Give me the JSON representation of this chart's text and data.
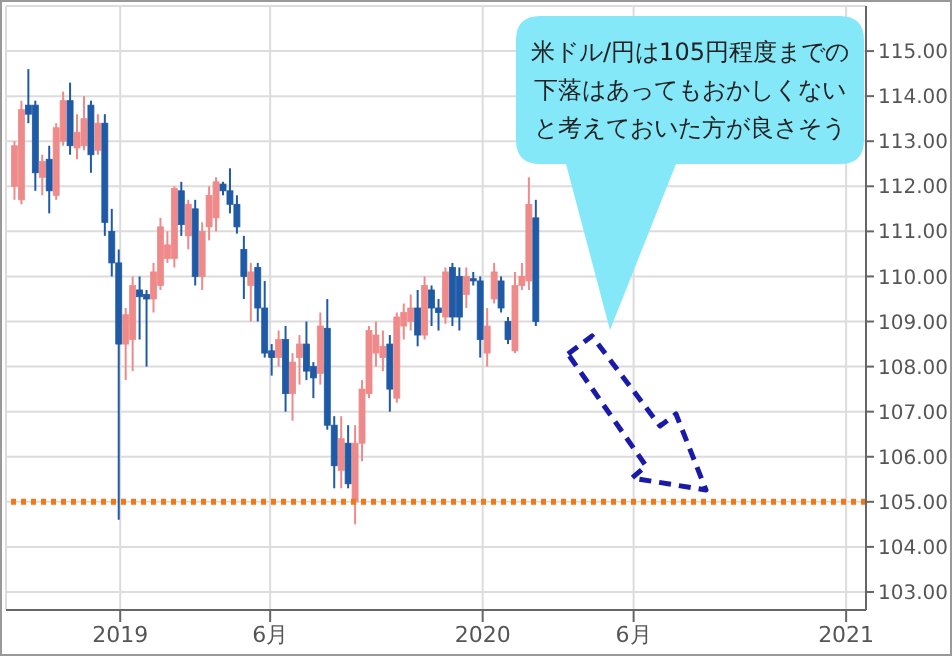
{
  "chart_data": {
    "type": "candlestick",
    "x": [
      "2018-09-17",
      "2018-09-24",
      "2018-10-01",
      "2018-10-08",
      "2018-10-15",
      "2018-10-22",
      "2018-10-29",
      "2018-11-05",
      "2018-11-12",
      "2018-11-19",
      "2018-11-26",
      "2018-12-03",
      "2018-12-10",
      "2018-12-17",
      "2018-12-24",
      "2018-12-31",
      "2019-01-07",
      "2019-01-14",
      "2019-01-21",
      "2019-01-28",
      "2019-02-04",
      "2019-02-11",
      "2019-02-18",
      "2019-02-25",
      "2019-03-04",
      "2019-03-11",
      "2019-03-18",
      "2019-03-25",
      "2019-04-01",
      "2019-04-08",
      "2019-04-15",
      "2019-04-22",
      "2019-04-29",
      "2019-05-06",
      "2019-05-13",
      "2019-05-20",
      "2019-05-27",
      "2019-06-03",
      "2019-06-10",
      "2019-06-17",
      "2019-06-24",
      "2019-07-01",
      "2019-07-08",
      "2019-07-15",
      "2019-07-22",
      "2019-07-29",
      "2019-08-05",
      "2019-08-12",
      "2019-08-19",
      "2019-08-26",
      "2019-09-02",
      "2019-09-09",
      "2019-09-16",
      "2019-09-23",
      "2019-09-30",
      "2019-10-07",
      "2019-10-14",
      "2019-10-21",
      "2019-10-28",
      "2019-11-04",
      "2019-11-11",
      "2019-11-18",
      "2019-11-25",
      "2019-12-02",
      "2019-12-09",
      "2019-12-16",
      "2019-12-23",
      "2019-12-30",
      "2020-01-06",
      "2020-01-13",
      "2020-01-20",
      "2020-01-27",
      "2020-02-03",
      "2020-02-10",
      "2020-02-17",
      "2020-02-24"
    ],
    "ohlc": [
      [
        112.0,
        113.0,
        111.7,
        112.9
      ],
      [
        111.7,
        113.9,
        111.6,
        113.7
      ],
      [
        113.8,
        114.6,
        113.4,
        113.6
      ],
      [
        113.8,
        113.9,
        111.9,
        112.3
      ],
      [
        112.2,
        112.7,
        111.8,
        112.55
      ],
      [
        112.6,
        112.9,
        111.4,
        111.9
      ],
      [
        111.8,
        113.4,
        111.7,
        113.3
      ],
      [
        113.0,
        114.1,
        112.9,
        113.9
      ],
      [
        113.9,
        114.3,
        112.7,
        112.9
      ],
      [
        112.85,
        113.6,
        112.6,
        113.2
      ],
      [
        112.9,
        114.0,
        112.8,
        113.5
      ],
      [
        113.8,
        113.9,
        112.3,
        112.7
      ],
      [
        112.8,
        113.6,
        112.7,
        113.4
      ],
      [
        113.4,
        113.6,
        110.9,
        111.2
      ],
      [
        111.0,
        111.5,
        110.0,
        110.3
      ],
      [
        110.3,
        110.6,
        104.6,
        108.5
      ],
      [
        108.5,
        109.3,
        107.7,
        109.15
      ],
      [
        108.6,
        110.0,
        107.9,
        109.8
      ],
      [
        109.7,
        110.0,
        108.6,
        109.55
      ],
      [
        109.6,
        109.7,
        108.0,
        109.5
      ],
      [
        109.5,
        110.3,
        109.2,
        110.1
      ],
      [
        109.8,
        111.3,
        109.7,
        111.1
      ],
      [
        110.4,
        111.0,
        110.3,
        110.7
      ],
      [
        110.4,
        112.0,
        110.2,
        111.95
      ],
      [
        111.9,
        112.1,
        110.9,
        111.15
      ],
      [
        110.9,
        111.7,
        110.6,
        111.6
      ],
      [
        111.5,
        111.7,
        109.8,
        110.0
      ],
      [
        110.0,
        111.2,
        109.7,
        111.0
      ],
      [
        111.1,
        112.0,
        110.8,
        111.8
      ],
      [
        111.3,
        112.2,
        111.0,
        112.1
      ],
      [
        112.05,
        112.1,
        111.8,
        111.9
      ],
      [
        111.9,
        112.4,
        111.4,
        111.6
      ],
      [
        111.6,
        111.8,
        110.95,
        111.1
      ],
      [
        110.6,
        110.9,
        109.5,
        110.0
      ],
      [
        109.8,
        110.3,
        109.0,
        110.1
      ],
      [
        110.2,
        110.3,
        109.0,
        109.3
      ],
      [
        109.3,
        109.9,
        108.2,
        108.3
      ],
      [
        108.35,
        108.5,
        107.8,
        108.2
      ],
      [
        108.2,
        108.8,
        108.0,
        108.6
      ],
      [
        108.6,
        108.9,
        107.0,
        107.4
      ],
      [
        107.4,
        108.3,
        106.8,
        108.1
      ],
      [
        108.2,
        108.7,
        107.6,
        108.5
      ],
      [
        108.5,
        109.0,
        107.7,
        107.9
      ],
      [
        108.0,
        108.1,
        107.3,
        107.75
      ],
      [
        107.85,
        109.2,
        107.6,
        108.9
      ],
      [
        108.85,
        109.5,
        106.6,
        106.7
      ],
      [
        106.7,
        106.9,
        105.3,
        105.8
      ],
      [
        105.7,
        106.9,
        105.3,
        106.4
      ],
      [
        106.3,
        106.7,
        105.3,
        105.4
      ],
      [
        105.0,
        106.7,
        104.5,
        106.3
      ],
      [
        106.3,
        107.7,
        105.9,
        107.5
      ],
      [
        107.4,
        108.9,
        107.3,
        108.8
      ],
      [
        108.3,
        109.0,
        108.0,
        108.7
      ],
      [
        108.2,
        108.8,
        107.9,
        108.45
      ],
      [
        108.5,
        108.7,
        107.0,
        107.5
      ],
      [
        107.3,
        109.2,
        107.2,
        109.1
      ],
      [
        108.9,
        109.4,
        108.6,
        109.2
      ],
      [
        109.0,
        109.6,
        108.8,
        109.3
      ],
      [
        109.3,
        109.7,
        108.45,
        108.7
      ],
      [
        108.7,
        110.0,
        108.6,
        109.8
      ],
      [
        109.7,
        109.8,
        108.9,
        109.3
      ],
      [
        109.3,
        109.5,
        108.8,
        109.2
      ],
      [
        109.1,
        110.2,
        108.95,
        110.1
      ],
      [
        110.2,
        110.3,
        108.9,
        109.1
      ],
      [
        110.0,
        110.2,
        108.8,
        109.1
      ],
      [
        109.6,
        110.2,
        109.3,
        110.0
      ],
      [
        109.95,
        110.1,
        109.8,
        109.9
      ],
      [
        109.9,
        110.0,
        108.2,
        108.6
      ],
      [
        108.3,
        109.3,
        108.0,
        108.9
      ],
      [
        109.5,
        110.3,
        109.4,
        110.1
      ],
      [
        109.9,
        110.0,
        109.2,
        109.3
      ],
      [
        109.0,
        109.1,
        108.5,
        108.6
      ],
      [
        108.35,
        110.1,
        108.3,
        109.8
      ],
      [
        109.8,
        110.3,
        109.7,
        110.0
      ],
      [
        109.9,
        112.2,
        109.7,
        111.6
      ],
      [
        111.3,
        111.7,
        108.9,
        109.0
      ]
    ],
    "colors": [
      "#ef8a8a",
      "#ef8a8a",
      "#1f5aa6",
      "#1f5aa6",
      "#ef8a8a",
      "#1f5aa6",
      "#ef8a8a",
      "#ef8a8a",
      "#1f5aa6",
      "#ef8a8a",
      "#ef8a8a",
      "#1f5aa6",
      "#ef8a8a",
      "#1f5aa6",
      "#1f5aa6",
      "#1f5aa6",
      "#ef8a8a",
      "#ef8a8a",
      "#1f5aa6",
      "#1f5aa6",
      "#ef8a8a",
      "#ef8a8a",
      "#ef8a8a",
      "#ef8a8a",
      "#1f5aa6",
      "#ef8a8a",
      "#1f5aa6",
      "#ef8a8a",
      "#ef8a8a",
      "#ef8a8a",
      "#1f5aa6",
      "#1f5aa6",
      "#1f5aa6",
      "#1f5aa6",
      "#ef8a8a",
      "#1f5aa6",
      "#1f5aa6",
      "#1f5aa6",
      "#ef8a8a",
      "#1f5aa6",
      "#ef8a8a",
      "#ef8a8a",
      "#1f5aa6",
      "#1f5aa6",
      "#ef8a8a",
      "#1f5aa6",
      "#1f5aa6",
      "#ef8a8a",
      "#1f5aa6",
      "#ef8a8a",
      "#ef8a8a",
      "#ef8a8a",
      "#ef8a8a",
      "#ef8a8a",
      "#1f5aa6",
      "#ef8a8a",
      "#ef8a8a",
      "#ef8a8a",
      "#1f5aa6",
      "#ef8a8a",
      "#1f5aa6",
      "#1f5aa6",
      "#ef8a8a",
      "#1f5aa6",
      "#1f5aa6",
      "#ef8a8a",
      "#1f5aa6",
      "#1f5aa6",
      "#ef8a8a",
      "#ef8a8a",
      "#1f5aa6",
      "#1f5aa6",
      "#ef8a8a",
      "#ef8a8a",
      "#ef8a8a",
      "#1f5aa6"
    ],
    "xlim": [
      "2018-09-08",
      "2021-01-21"
    ],
    "xticks": [
      {
        "value": "2019-01-01",
        "label": "2019"
      },
      {
        "value": "2019-06-01",
        "label": "6月"
      },
      {
        "value": "2020-01-01",
        "label": "2020"
      },
      {
        "value": "2020-06-01",
        "label": "6月"
      },
      {
        "value": "2021-01-01",
        "label": "2021"
      }
    ],
    "ylim": [
      102.6,
      116
    ],
    "yticks": [
      {
        "value": 103,
        "label": "103.00"
      },
      {
        "value": 104,
        "label": "104.00"
      },
      {
        "value": 105,
        "label": "105.00"
      },
      {
        "value": 106,
        "label": "106.00"
      },
      {
        "value": 107,
        "label": "107.00"
      },
      {
        "value": 108,
        "label": "108.00"
      },
      {
        "value": 109,
        "label": "109.00"
      },
      {
        "value": 110,
        "label": "110.00"
      },
      {
        "value": 111,
        "label": "111.00"
      },
      {
        "value": 112,
        "label": "112.00"
      },
      {
        "value": 113,
        "label": "113.00"
      },
      {
        "value": 114,
        "label": "114.00"
      },
      {
        "value": 115,
        "label": "115.00"
      }
    ],
    "grid": true,
    "legend": false,
    "ref_lines": [
      {
        "axis": "y",
        "value": 105,
        "color": "#f07a1a",
        "line_style": "dotted"
      }
    ],
    "annotations": [
      "米ドル/円は105円程度までの下落はあってもおかしくないと考えておいた方が良さそう"
    ]
  }
}
